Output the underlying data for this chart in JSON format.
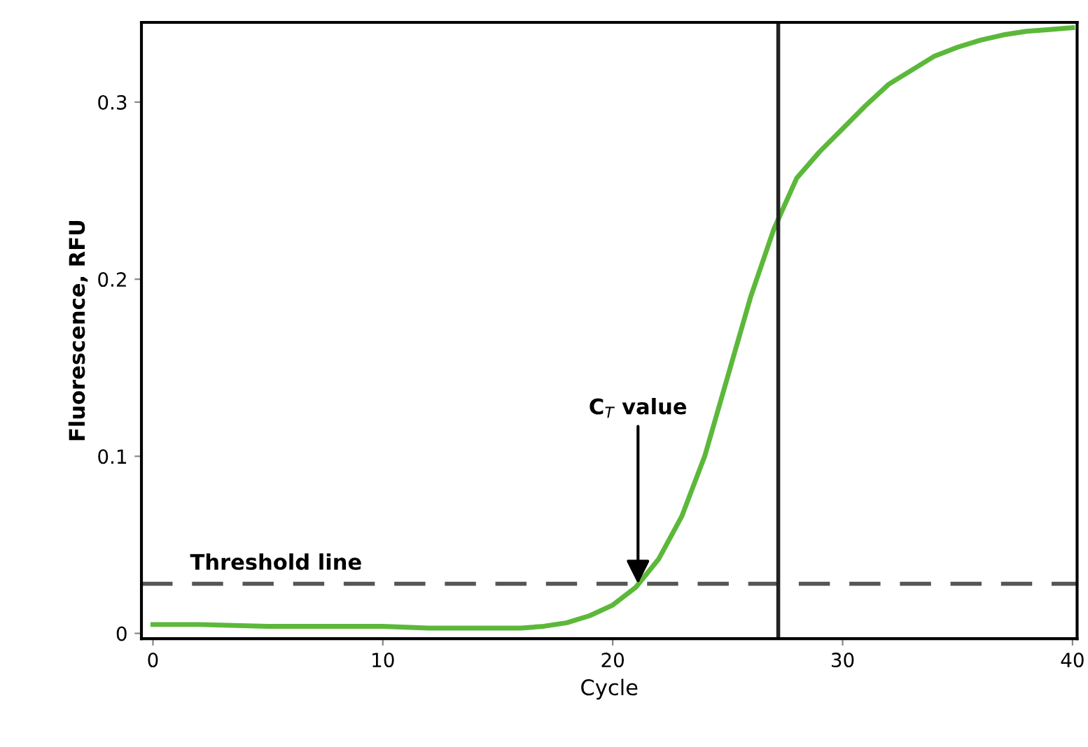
{
  "chart_data": {
    "type": "line",
    "xlabel": "Cycle",
    "ylabel": "Fluorescence, RFU",
    "series": [
      {
        "color": "#5cb83a",
        "x": [
          0,
          2,
          5,
          8,
          10,
          12,
          14,
          15,
          16,
          17,
          18,
          19,
          20,
          21,
          22,
          23,
          24,
          25,
          26,
          27,
          28,
          29,
          30,
          31,
          32,
          33,
          34,
          35,
          36,
          37,
          38,
          39,
          40
        ],
        "values": [
          0.005,
          0.005,
          0.004,
          0.004,
          0.004,
          0.003,
          0.003,
          0.003,
          0.003,
          0.004,
          0.006,
          0.01,
          0.016,
          0.026,
          0.042,
          0.066,
          0.1,
          0.145,
          0.19,
          0.228,
          0.257,
          0.272,
          0.285,
          0.298,
          0.31,
          0.318,
          0.326,
          0.331,
          0.335,
          0.338,
          0.34,
          0.341,
          0.342
        ]
      }
    ],
    "xlim": [
      -0.5,
      40.2
    ],
    "ylim": [
      -0.003,
      0.345
    ],
    "xticks": [
      0,
      10,
      20,
      30,
      40
    ],
    "yticks": [
      0,
      0.1,
      0.2,
      0.3
    ],
    "ref_lines": [
      {
        "axis": "y",
        "value": 0.028,
        "label": "Threshold line",
        "color": "#555555",
        "line_style": "dashed"
      },
      {
        "axis": "x",
        "value": 27.2,
        "color": "#222222",
        "line_style": "solid"
      }
    ],
    "annotations": [
      {
        "text": "C$_{T}$ value",
        "x": 21.1,
        "y": 0.028
      }
    ],
    "grid": false,
    "legend": false,
    "marker": "none",
    "line_style": "solid"
  }
}
